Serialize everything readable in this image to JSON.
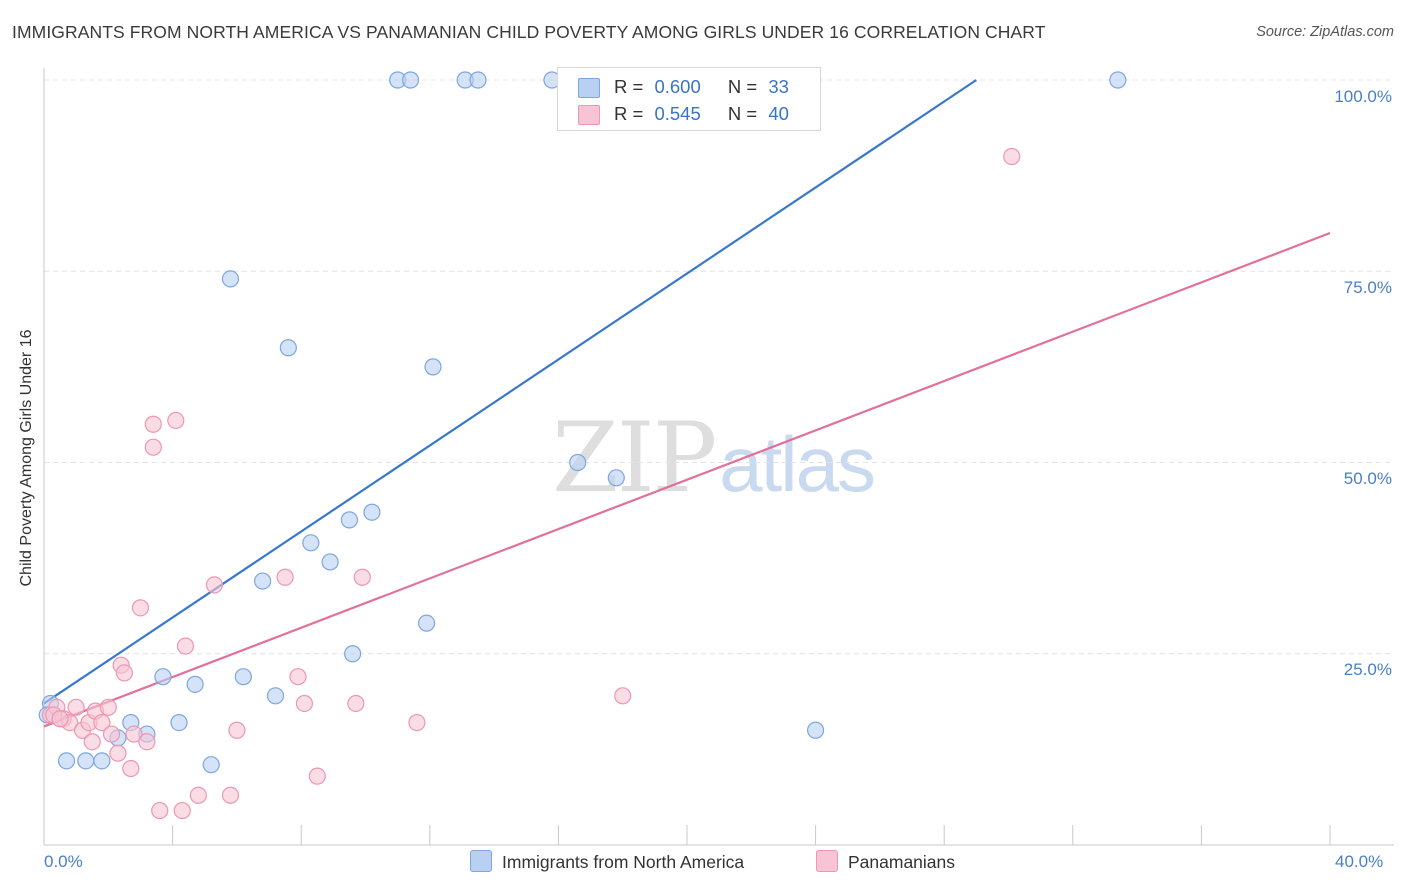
{
  "header": {
    "title": "IMMIGRANTS FROM NORTH AMERICA VS PANAMANIAN CHILD POVERTY AMONG GIRLS UNDER 16 CORRELATION CHART",
    "source": "Source: ZipAtlas.com"
  },
  "watermark": {
    "zip": "ZIP",
    "atlas": "atlas"
  },
  "legend": {
    "r_label": "R =",
    "n_label": "N =",
    "series1": {
      "r": "0.600",
      "n": "33"
    },
    "series2": {
      "r": "0.545",
      "n": "40"
    }
  },
  "colors": {
    "blue_fill": "#b8d0f2",
    "blue_stroke": "#7ea6e0",
    "blue_line": "#3a78cc",
    "pink_fill": "#f6c4d4",
    "pink_stroke": "#ee96b4",
    "pink_line": "#e2709a",
    "grid": "#e4e4e4",
    "tick_text": "#4a7fc8"
  },
  "chart_data": {
    "type": "scatter",
    "title": "IMMIGRANTS FROM NORTH AMERICA VS PANAMANIAN CHILD POVERTY AMONG GIRLS UNDER 16 CORRELATION CHART",
    "xlabel": "",
    "ylabel": "Child Poverty Among Girls Under 16",
    "xlim": [
      0,
      40
    ],
    "ylim": [
      0,
      100
    ],
    "x_tick_labels": [
      "0.0%",
      "40.0%"
    ],
    "y_ticks": [
      25,
      50,
      75,
      100
    ],
    "y_tick_labels": [
      "25.0%",
      "50.0%",
      "75.0%",
      "100.0%"
    ],
    "legend_position": "bottom-center",
    "series": [
      {
        "name": "Immigrants from North America",
        "r": 0.6,
        "n": 33,
        "trend": [
          [
            0.0,
            18.5
          ],
          [
            29.0,
            100.0
          ]
        ],
        "points": [
          [
            0.2,
            18.5
          ],
          [
            0.1,
            17.0
          ],
          [
            0.7,
            11.0
          ],
          [
            1.3,
            11.0
          ],
          [
            1.8,
            11.0
          ],
          [
            2.3,
            14.0
          ],
          [
            2.7,
            16.0
          ],
          [
            3.2,
            14.5
          ],
          [
            3.7,
            22.0
          ],
          [
            4.2,
            16.0
          ],
          [
            4.7,
            21.0
          ],
          [
            5.2,
            10.5
          ],
          [
            6.2,
            22.0
          ],
          [
            5.8,
            74.0
          ],
          [
            6.8,
            34.5
          ],
          [
            7.2,
            19.5
          ],
          [
            7.6,
            65.0
          ],
          [
            8.3,
            39.5
          ],
          [
            8.9,
            37.0
          ],
          [
            9.5,
            42.5
          ],
          [
            10.2,
            43.5
          ],
          [
            9.6,
            25.0
          ],
          [
            11.9,
            29.0
          ],
          [
            12.1,
            62.5
          ],
          [
            16.6,
            50.0
          ],
          [
            17.8,
            48.0
          ],
          [
            24.0,
            15.0
          ],
          [
            11.0,
            100.0
          ],
          [
            11.4,
            100.0
          ],
          [
            13.1,
            100.0
          ],
          [
            13.5,
            100.0
          ],
          [
            15.8,
            100.0
          ],
          [
            33.4,
            100.0
          ]
        ]
      },
      {
        "name": "Panamanians",
        "r": 0.545,
        "n": 40,
        "trend": [
          [
            0.0,
            15.5
          ],
          [
            40.0,
            80.0
          ]
        ],
        "points": [
          [
            0.2,
            17.0
          ],
          [
            0.4,
            18.0
          ],
          [
            0.6,
            16.5
          ],
          [
            0.8,
            16.0
          ],
          [
            1.0,
            18.0
          ],
          [
            1.2,
            15.0
          ],
          [
            1.4,
            16.0
          ],
          [
            1.5,
            13.5
          ],
          [
            1.6,
            17.5
          ],
          [
            1.8,
            16.0
          ],
          [
            2.0,
            18.0
          ],
          [
            2.1,
            14.5
          ],
          [
            2.3,
            12.0
          ],
          [
            2.4,
            23.5
          ],
          [
            2.5,
            22.5
          ],
          [
            2.7,
            10.0
          ],
          [
            2.8,
            14.5
          ],
          [
            3.0,
            31.0
          ],
          [
            3.2,
            13.5
          ],
          [
            3.4,
            55.0
          ],
          [
            3.4,
            52.0
          ],
          [
            3.6,
            4.5
          ],
          [
            4.1,
            55.5
          ],
          [
            4.3,
            4.5
          ],
          [
            4.4,
            26.0
          ],
          [
            4.8,
            6.5
          ],
          [
            5.3,
            34.0
          ],
          [
            5.8,
            6.5
          ],
          [
            6.0,
            15.0
          ],
          [
            7.5,
            35.0
          ],
          [
            7.9,
            22.0
          ],
          [
            8.1,
            18.5
          ],
          [
            8.5,
            9.0
          ],
          [
            9.7,
            18.5
          ],
          [
            9.9,
            35.0
          ],
          [
            11.6,
            16.0
          ],
          [
            18.0,
            19.5
          ],
          [
            30.1,
            90.0
          ],
          [
            0.3,
            17.0
          ],
          [
            0.5,
            16.5
          ]
        ]
      }
    ]
  }
}
